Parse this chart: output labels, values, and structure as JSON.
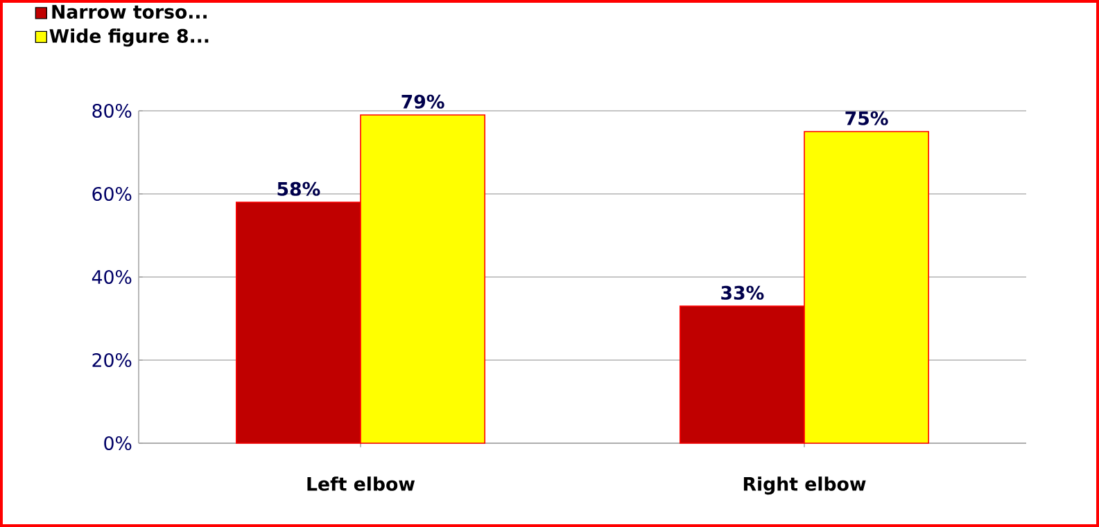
{
  "chart_data": {
    "type": "bar",
    "categories": [
      "Left elbow",
      "Right elbow"
    ],
    "series": [
      {
        "name": "Narrow torso...",
        "color": "#c00000",
        "values": [
          58,
          33
        ],
        "value_labels": [
          "58%",
          "33%"
        ]
      },
      {
        "name": "Wide figure 8...",
        "color": "#ffff00",
        "values": [
          79,
          75
        ],
        "value_labels": [
          "79%",
          "75%"
        ]
      }
    ],
    "ylim": [
      0,
      80
    ],
    "yticks": [
      {
        "value": 0,
        "label": "0%"
      },
      {
        "value": 20,
        "label": "20%"
      },
      {
        "value": 40,
        "label": "40%"
      },
      {
        "value": 60,
        "label": "60%"
      },
      {
        "value": 80,
        "label": "80%"
      }
    ],
    "grid": "y",
    "legend": "top left"
  }
}
